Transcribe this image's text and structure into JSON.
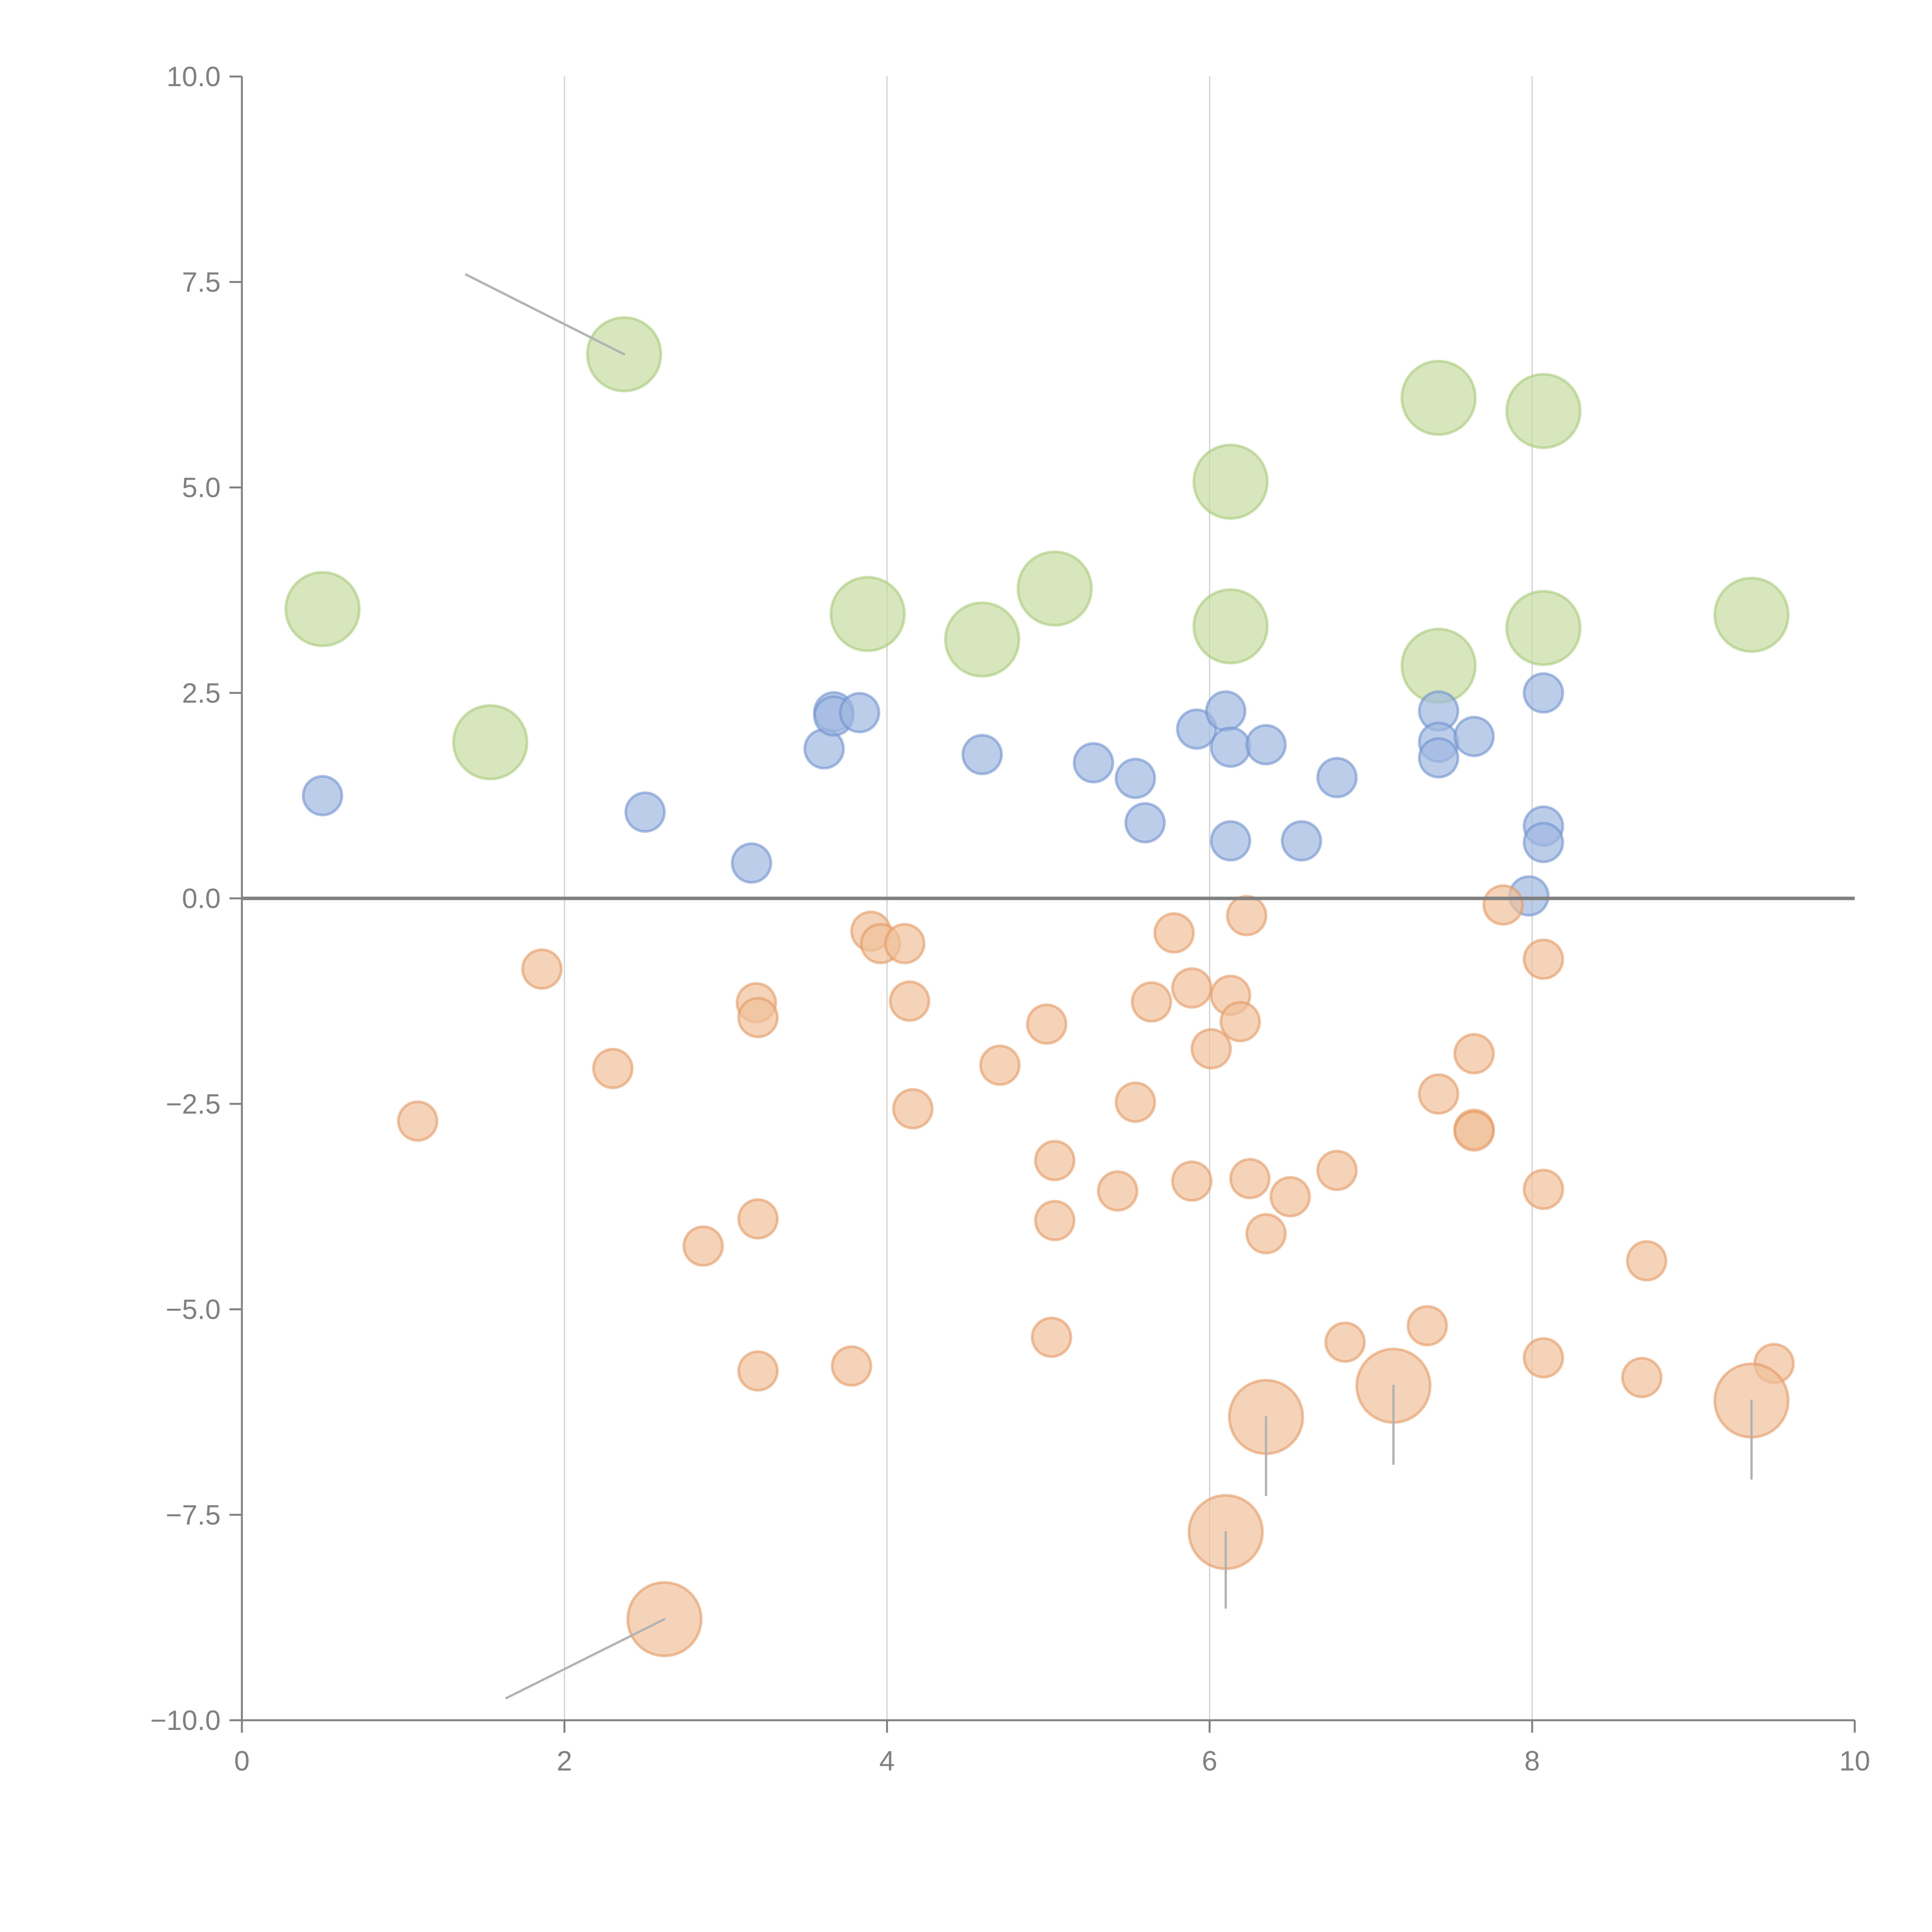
{
  "chart_data": {
    "type": "scatter",
    "title": "",
    "xlabel": "",
    "ylabel": "",
    "xlim": [
      0,
      10
    ],
    "ylim": [
      -10,
      10
    ],
    "grid": "vertical",
    "x_ticks": [
      "0",
      "2",
      "4",
      "6",
      "8",
      "10"
    ],
    "y_ticks": [
      "10.0",
      "7.5",
      "5.0",
      "2.5",
      "0.0",
      "−2.5",
      "−5.0",
      "−7.5",
      "−10.0"
    ],
    "x_tick_values": [
      0,
      2,
      4,
      6,
      8,
      10
    ],
    "y_tick_values": [
      10,
      7.5,
      5,
      2.5,
      0,
      -2.5,
      -5,
      -7.5,
      -10
    ],
    "colors": {
      "green": "#b5d18a",
      "blue": "#7b9bd1",
      "orange": "#e8a56e",
      "axis": "#808080",
      "leader": "#b0b0b0"
    },
    "series": [
      {
        "name": "green",
        "size": "large",
        "points": [
          [
            2.37,
            6.62
          ],
          [
            0.5,
            3.52
          ],
          [
            1.54,
            1.9
          ],
          [
            3.88,
            3.46
          ],
          [
            4.59,
            3.15
          ],
          [
            5.04,
            3.77
          ],
          [
            6.13,
            5.07
          ],
          [
            6.13,
            3.31
          ],
          [
            7.42,
            6.09
          ],
          [
            8.07,
            5.93
          ],
          [
            7.42,
            2.83
          ],
          [
            8.07,
            3.29
          ],
          [
            9.36,
            3.45
          ]
        ]
      },
      {
        "name": "blue",
        "size": "small",
        "points": [
          [
            0.5,
            1.25
          ],
          [
            2.5,
            1.05
          ],
          [
            3.16,
            0.43
          ],
          [
            3.61,
            1.82
          ],
          [
            3.67,
            2.27
          ],
          [
            3.67,
            2.22
          ],
          [
            3.83,
            2.26
          ],
          [
            4.59,
            1.75
          ],
          [
            5.28,
            1.65
          ],
          [
            5.54,
            1.46
          ],
          [
            5.6,
            0.92
          ],
          [
            5.92,
            2.06
          ],
          [
            6.1,
            2.28
          ],
          [
            6.13,
            1.84
          ],
          [
            6.13,
            0.7
          ],
          [
            6.35,
            1.87
          ],
          [
            6.57,
            0.7
          ],
          [
            6.79,
            1.47
          ],
          [
            7.42,
            2.28
          ],
          [
            7.42,
            1.9
          ],
          [
            7.42,
            1.71
          ],
          [
            7.64,
            1.97
          ],
          [
            8.07,
            2.5
          ],
          [
            8.07,
            0.88
          ],
          [
            8.07,
            0.68
          ],
          [
            7.98,
            0.03
          ]
        ]
      },
      {
        "name": "orange",
        "size": "small",
        "points": [
          [
            1.86,
            -0.86
          ],
          [
            1.09,
            -2.71
          ],
          [
            2.3,
            -2.07
          ],
          [
            3.19,
            -1.27
          ],
          [
            3.2,
            -1.45
          ],
          [
            2.86,
            -4.23
          ],
          [
            3.2,
            -3.9
          ],
          [
            3.2,
            -5.75
          ],
          [
            3.78,
            -5.69
          ],
          [
            3.9,
            -0.4
          ],
          [
            3.96,
            -0.55
          ],
          [
            4.11,
            -0.55
          ],
          [
            4.14,
            -1.25
          ],
          [
            4.16,
            -2.56
          ],
          [
            4.7,
            -2.03
          ],
          [
            4.99,
            -1.53
          ],
          [
            5.04,
            -3.19
          ],
          [
            5.04,
            -3.92
          ],
          [
            5.02,
            -5.34
          ],
          [
            5.43,
            -3.56
          ],
          [
            5.64,
            -1.26
          ],
          [
            5.54,
            -2.48
          ],
          [
            5.78,
            -0.42
          ],
          [
            5.89,
            -1.09
          ],
          [
            5.89,
            -3.44
          ],
          [
            6.01,
            -1.83
          ],
          [
            6.13,
            -1.18
          ],
          [
            6.19,
            -1.5
          ],
          [
            6.23,
            -0.21
          ],
          [
            6.25,
            -3.41
          ],
          [
            6.35,
            -4.08
          ],
          [
            6.5,
            -3.63
          ],
          [
            6.79,
            -3.31
          ],
          [
            6.84,
            -5.4
          ],
          [
            7.35,
            -5.2
          ],
          [
            7.42,
            -2.38
          ],
          [
            7.64,
            -1.89
          ],
          [
            7.64,
            -2.81
          ],
          [
            7.64,
            -2.83
          ],
          [
            7.82,
            -0.08
          ],
          [
            8.07,
            -0.74
          ],
          [
            8.07,
            -3.54
          ],
          [
            8.07,
            -5.59
          ],
          [
            8.71,
            -4.41
          ],
          [
            8.68,
            -5.83
          ],
          [
            9.5,
            -5.66
          ]
        ]
      },
      {
        "name": "orange-large",
        "size": "large",
        "points": [
          [
            2.62,
            -8.77
          ],
          [
            6.1,
            -7.71
          ],
          [
            6.35,
            -6.31
          ],
          [
            7.14,
            -5.93
          ],
          [
            9.36,
            -6.11
          ]
        ]
      }
    ],
    "annotations": [
      {
        "point": [
          2.37,
          6.62
        ],
        "label_at": [
          1.39,
          7.59
        ],
        "text": ""
      },
      {
        "point": [
          2.62,
          -8.77
        ],
        "label_at": [
          1.64,
          -9.73
        ],
        "text": ""
      },
      {
        "point": [
          6.1,
          -7.71
        ],
        "label_at": [
          6.1,
          -8.63
        ],
        "text": ""
      },
      {
        "point": [
          6.35,
          -6.31
        ],
        "label_at": [
          6.35,
          -7.26
        ],
        "text": ""
      },
      {
        "point": [
          7.14,
          -5.93
        ],
        "label_at": [
          7.14,
          -6.88
        ],
        "text": ""
      },
      {
        "point": [
          9.36,
          -6.11
        ],
        "label_at": [
          9.36,
          -7.06
        ],
        "text": ""
      }
    ],
    "hline": 0
  }
}
